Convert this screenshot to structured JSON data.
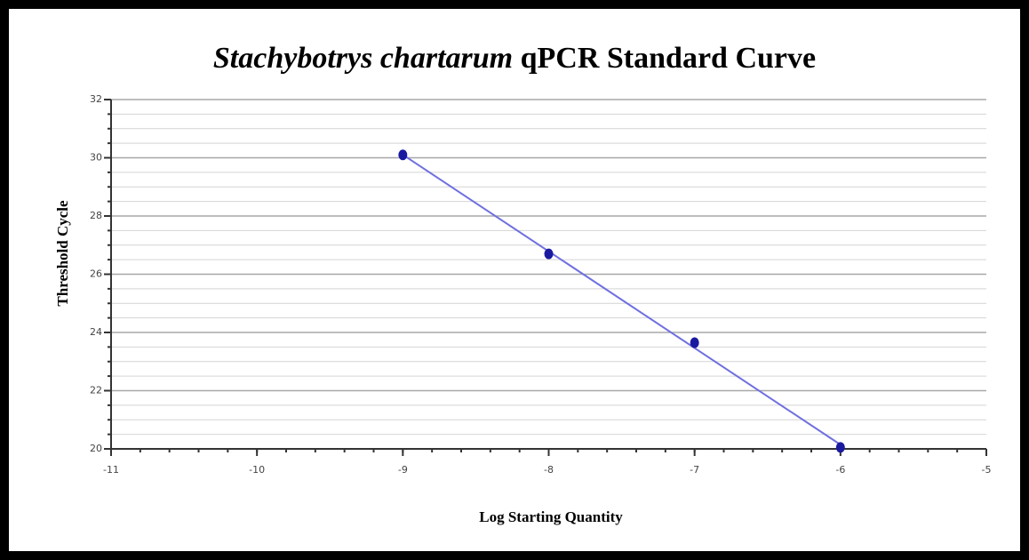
{
  "chart_data": {
    "type": "scatter",
    "title": [
      "Stachybotrys chartarum",
      "qPCR Standard Curve"
    ],
    "xlabel": "Log Starting Quantity",
    "ylabel": "Threshold  Cycle",
    "x": [
      -9,
      -8,
      -7,
      -6
    ],
    "values": [
      30.1,
      26.7,
      23.65,
      20.05
    ],
    "color": "#1a1aa0",
    "trendline": true,
    "trendline_color": "#6f6fe0",
    "xlim": [
      -11,
      -5
    ],
    "xticks": [
      -11,
      -10,
      -9,
      -8,
      -7,
      -6,
      -5
    ],
    "ylim": [
      20,
      32
    ],
    "yticks": [
      20,
      22,
      24,
      26,
      28,
      30,
      32
    ],
    "grid": true,
    "minor_grid_step": 0.5
  }
}
